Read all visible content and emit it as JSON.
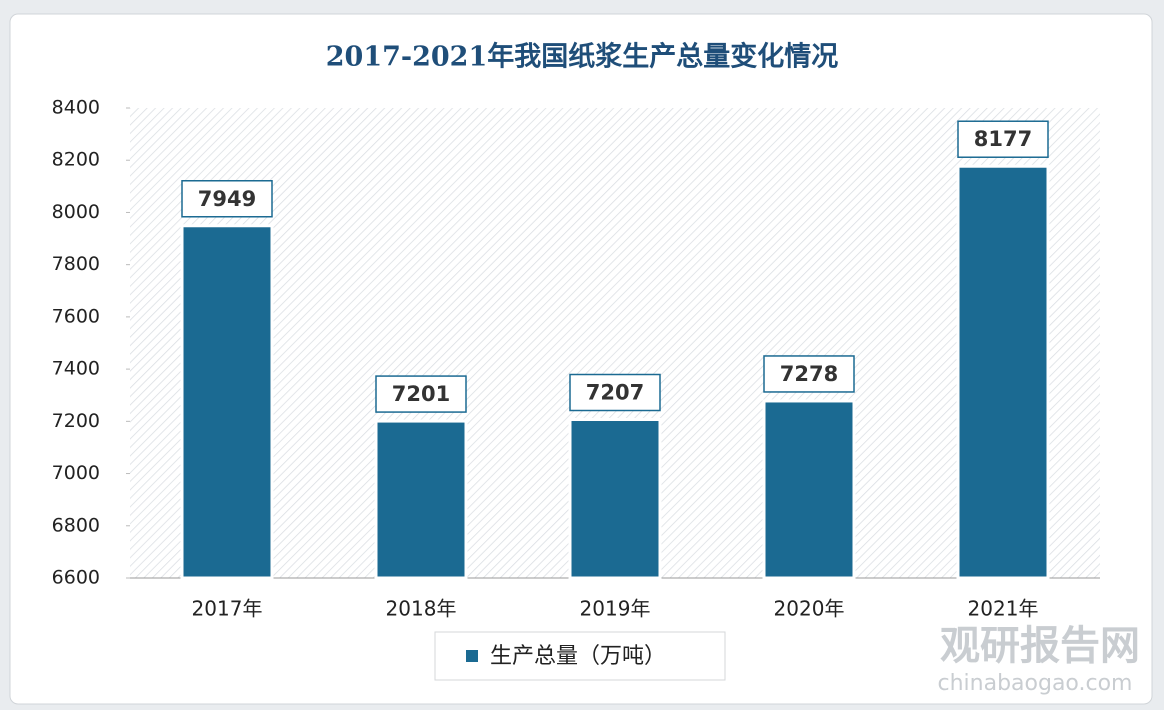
{
  "chart_data": {
    "type": "bar",
    "title": "2017-2021年我国纸浆生产总量变化情况",
    "categories": [
      "2017年",
      "2018年",
      "2019年",
      "2020年",
      "2021年"
    ],
    "series": [
      {
        "name": "生产总量（万吨）",
        "color": "#1b6a92",
        "values": [
          7949,
          7201,
          7207,
          7278,
          8177
        ]
      }
    ],
    "ylim": [
      6600,
      8400
    ],
    "yticks": [
      6600,
      6800,
      7000,
      7200,
      7400,
      7600,
      7800,
      8000,
      8200,
      8400
    ],
    "legend": "bottom",
    "watermark_title": "观研报告网",
    "watermark_url": "chinabaogao.com"
  }
}
